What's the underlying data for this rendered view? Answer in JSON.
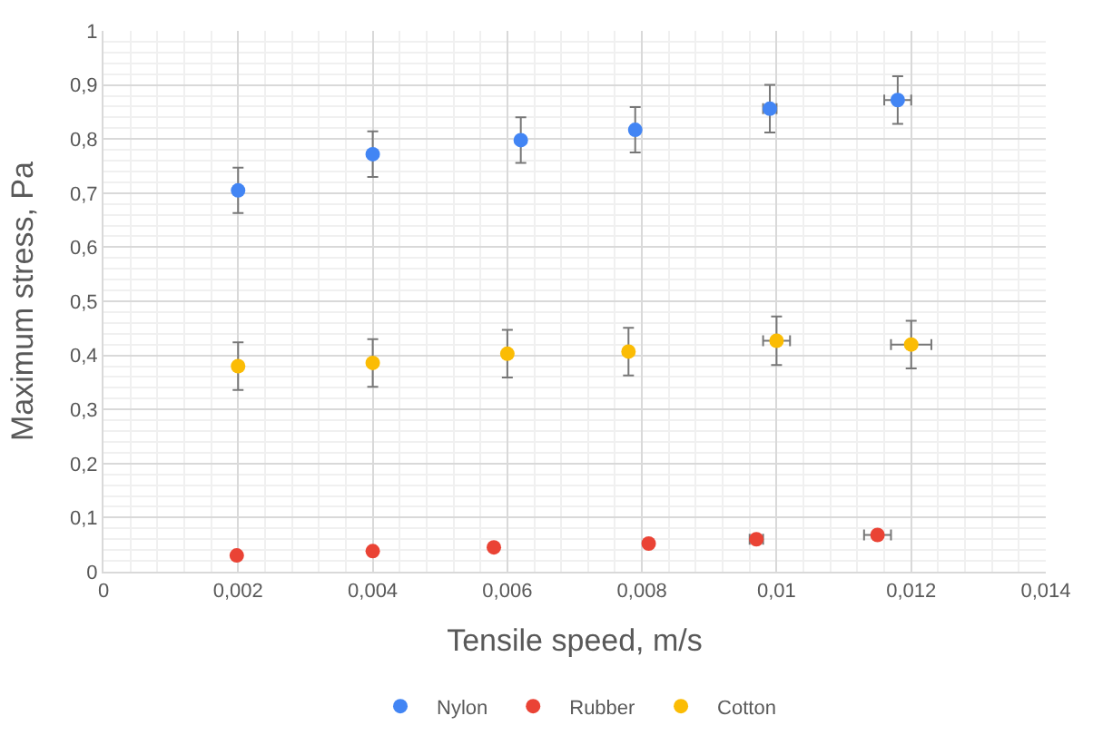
{
  "chart_data": {
    "type": "scatter",
    "xlabel": "Tensile speed, m/s",
    "ylabel": "Maximum stress, Pa",
    "xlim": [
      0,
      0.014
    ],
    "ylim": [
      0,
      1
    ],
    "xticks": [
      0,
      {
        "value": 0.002,
        "label": "0,002"
      },
      {
        "value": 0.004,
        "label": "0,004"
      },
      {
        "value": 0.006,
        "label": "0,006"
      },
      {
        "value": 0.008,
        "label": "0,008"
      },
      {
        "value": 0.01,
        "label": "0,01"
      },
      {
        "value": 0.012,
        "label": "0,012"
      },
      {
        "value": 0.014,
        "label": "0,014"
      }
    ],
    "yticks": [
      0,
      {
        "value": 0.1,
        "label": "0,1"
      },
      {
        "value": 0.2,
        "label": "0,2"
      },
      {
        "value": 0.3,
        "label": "0,3"
      },
      {
        "value": 0.4,
        "label": "0,4"
      },
      {
        "value": 0.5,
        "label": "0,5"
      },
      {
        "value": 0.6,
        "label": "0,6"
      },
      {
        "value": 0.7,
        "label": "0,7"
      },
      {
        "value": 0.8,
        "label": "0,8"
      },
      {
        "value": 0.9,
        "label": "0,9"
      },
      1
    ],
    "grid": true,
    "legend": "bottom",
    "marker": "circle",
    "series": [
      {
        "name": "Nylon",
        "color": "#4285f4",
        "x": [
          0.002,
          0.004,
          0.0062,
          0.0079,
          0.0099,
          0.0118
        ],
        "values": [
          0.705,
          0.772,
          0.798,
          0.817,
          0.856,
          0.872
        ],
        "errors": [
          0.042,
          0.042,
          0.042,
          0.042,
          0.044,
          0.044
        ],
        "xerrors": [
          null,
          null,
          null,
          null,
          0.0001,
          0.0002
        ]
      },
      {
        "name": "Rubber",
        "color": "#ea4335",
        "x": [
          0.00198,
          0.004,
          0.0058,
          0.0081,
          0.0097,
          0.0115
        ],
        "values": [
          0.03,
          0.038,
          0.045,
          0.052,
          0.06,
          0.068
        ],
        "xerrors": [
          null,
          null,
          null,
          null,
          0.0001,
          0.0002
        ]
      },
      {
        "name": "Cotton",
        "color": "#fbbc04",
        "x": [
          0.002,
          0.004,
          0.006,
          0.0078,
          0.01,
          0.012
        ],
        "values": [
          0.38,
          0.386,
          0.403,
          0.407,
          0.427,
          0.42
        ],
        "errors": [
          0.044,
          0.044,
          0.044,
          0.044,
          0.045,
          0.044
        ],
        "xerrors": [
          null,
          null,
          null,
          null,
          0.0002,
          0.0003
        ]
      }
    ]
  }
}
